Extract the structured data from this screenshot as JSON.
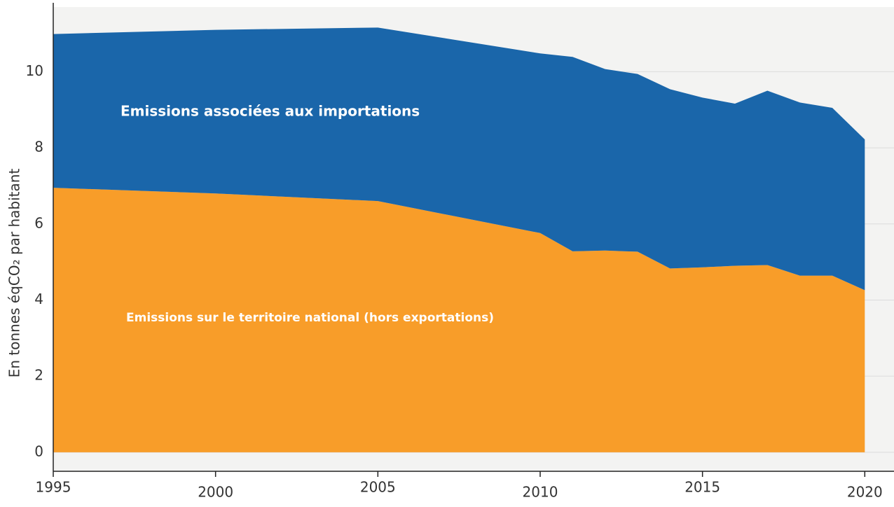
{
  "chart_data": {
    "type": "stacked_area",
    "y_label": "En tonnes éqCO₂ par habitant",
    "x": [
      1995,
      2000,
      2005,
      2010,
      2011,
      2012,
      2013,
      2014,
      2015,
      2016,
      2017,
      2018,
      2019,
      2020
    ],
    "series": [
      {
        "name": "Emissions sur le territoire national (hors exportations)",
        "color": "#f89d29",
        "values": [
          6.95,
          6.8,
          6.6,
          5.76,
          5.28,
          5.3,
          5.27,
          4.83,
          4.86,
          4.9,
          4.92,
          4.64,
          4.64,
          4.26
        ]
      },
      {
        "name": "Emissions associées aux importations",
        "color": "#1a66aa",
        "values": [
          4.04,
          4.3,
          4.56,
          4.72,
          5.11,
          4.77,
          4.67,
          4.71,
          4.46,
          4.26,
          4.58,
          4.55,
          4.41,
          3.96
        ]
      }
    ],
    "xlim": [
      1995,
      2020.9
    ],
    "ylim": [
      -0.5,
      11.7
    ],
    "xticks": [
      1995,
      2000,
      2005,
      2010,
      2015,
      2020
    ],
    "yticks": [
      0,
      2,
      4,
      6,
      8,
      10
    ],
    "grid": true
  }
}
